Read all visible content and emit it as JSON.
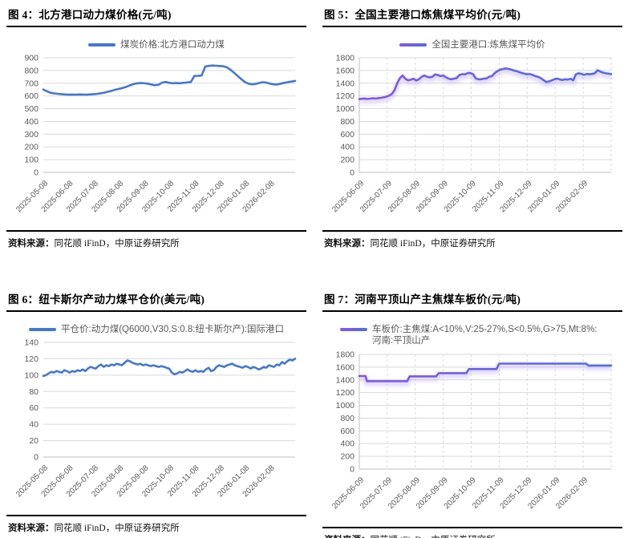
{
  "source_note": {
    "label": "资料来源：",
    "text": "同花顺 iFinD，中原证券研究所"
  },
  "colors": {
    "blue_line": "#4377d6",
    "purple_gradient_start": "#8356e8",
    "purple_gradient_end": "#4e6fe9",
    "purple_glow": "#c7b5f6",
    "gridline": "#d9d9d9",
    "axis": "#bfbfbf",
    "tick_text": "#595959"
  },
  "chart_data": [
    {
      "type": "line",
      "figure_label": "图 4",
      "title": "图 4：北方港口动力煤价格(元/吨)",
      "legend": "煤炭价格:北方港口动力煤",
      "ylim": [
        0,
        900
      ],
      "ytick_step": 100,
      "grid": "horizontal",
      "legend_position": "top-center",
      "palette": "blue",
      "x_labels": [
        "2025-05-08",
        "2025-06-08",
        "2025-07-08",
        "2025-08-08",
        "2025-09-08",
        "2025-10-08",
        "2025-11-08",
        "2025-12-08",
        "2026-01-08",
        "2026-02-08"
      ],
      "values": [
        650,
        637,
        625,
        620,
        617,
        614,
        612,
        610,
        611,
        610,
        612,
        611,
        610,
        612,
        614,
        617,
        621,
        626,
        633,
        641,
        649,
        655,
        662,
        671,
        682,
        692,
        699,
        701,
        700,
        697,
        690,
        684,
        688,
        704,
        710,
        703,
        700,
        701,
        700,
        703,
        706,
        709,
        757,
        758,
        760,
        831,
        836,
        839,
        837,
        835,
        833,
        825,
        806,
        783,
        757,
        733,
        710,
        697,
        691,
        695,
        702,
        708,
        704,
        697,
        691,
        690,
        697,
        703,
        708,
        713,
        718
      ]
    },
    {
      "type": "line",
      "figure_label": "图 5",
      "title": "图 5：全国主要港口炼焦煤平均价(元/吨)",
      "legend": "全国主要港口:炼焦煤平均价",
      "ylim": [
        0,
        1800
      ],
      "ytick_step": 200,
      "grid": "horizontal+vertical-dashed",
      "legend_position": "top-center",
      "palette": "purple-glow",
      "x_labels": [
        "2025-06-09",
        "2025-07-09",
        "2025-08-09",
        "2025-09-09",
        "2025-10-09",
        "2025-11-09",
        "2025-12-09",
        "2026-01-09",
        "2026-02-09"
      ],
      "values": [
        1150,
        1155,
        1160,
        1152,
        1158,
        1163,
        1158,
        1165,
        1170,
        1178,
        1190,
        1205,
        1230,
        1290,
        1400,
        1480,
        1520,
        1470,
        1445,
        1455,
        1470,
        1442,
        1462,
        1500,
        1520,
        1502,
        1492,
        1502,
        1538,
        1528,
        1512,
        1520,
        1492,
        1472,
        1462,
        1472,
        1482,
        1530,
        1542,
        1540,
        1558,
        1560,
        1542,
        1475,
        1462,
        1463,
        1472,
        1475,
        1502,
        1512,
        1558,
        1590,
        1612,
        1622,
        1632,
        1625,
        1615,
        1600,
        1590,
        1575,
        1560,
        1550,
        1540,
        1545,
        1530,
        1510,
        1500,
        1480,
        1450,
        1420,
        1428,
        1442,
        1462,
        1472,
        1460,
        1450,
        1462,
        1456,
        1470,
        1446,
        1540,
        1556,
        1546,
        1532,
        1546,
        1540,
        1546,
        1556,
        1605,
        1582,
        1566,
        1556,
        1550,
        1542
      ]
    },
    {
      "type": "line",
      "figure_label": "图 6",
      "title": "图 6：纽卡斯尔产动力煤平仓价(美元/吨)",
      "legend": "平仓价:动力煤(Q6000,V30,S:0.8:纽卡斯尔产):国际港口",
      "ylim": [
        0,
        140
      ],
      "ytick_step": 20,
      "grid": "horizontal",
      "legend_position": "top-center",
      "palette": "blue",
      "x_labels": [
        "2025-05-08",
        "2025-06-08",
        "2025-07-08",
        "2025-08-08",
        "2025-09-08",
        "2025-10-08",
        "2025-11-08",
        "2025-12-08",
        "2026-01-08",
        "2026-02-08"
      ],
      "values": [
        99,
        100,
        102,
        104,
        103,
        105,
        104,
        103,
        106,
        105,
        103,
        105,
        104,
        106,
        105,
        107,
        105,
        108,
        110,
        109,
        108,
        111,
        113,
        110,
        112,
        111,
        113,
        112,
        114,
        113,
        112,
        115,
        118,
        117,
        115,
        114,
        113,
        114,
        112,
        113,
        112,
        111,
        112,
        111,
        110,
        111,
        110,
        109,
        108,
        103,
        101,
        102,
        104,
        103,
        105,
        107,
        105,
        104,
        106,
        104,
        105,
        104,
        107,
        109,
        105,
        106,
        110,
        112,
        111,
        110,
        112,
        113,
        114,
        112,
        111,
        110,
        109,
        111,
        110,
        108,
        110,
        109,
        107,
        108,
        110,
        109,
        112,
        111,
        110,
        113,
        112,
        116,
        114,
        117,
        119,
        118,
        120
      ]
    },
    {
      "type": "line",
      "figure_label": "图 7",
      "title": "图 7：河南平顶山产主焦煤车板价(元/吨)",
      "legend": "车板价:主焦煤:A<10%,V:25-27%,S<0.5%,G>75,Mt:8%:河南:平顶山产",
      "ylim": [
        0,
        1800
      ],
      "ytick_step": 200,
      "grid": "horizontal+vertical-dashed",
      "legend_position": "top-left",
      "palette": "purple-glow",
      "x_labels": [
        "2025-06-09",
        "2025-07-09",
        "2025-08-09",
        "2025-09-09",
        "2025-10-09",
        "2025-11-09",
        "2025-12-09",
        "2026-01-09",
        "2026-02-09"
      ],
      "points": [
        [
          0,
          1460
        ],
        [
          0.025,
          1460
        ],
        [
          0.03,
          1380
        ],
        [
          0.19,
          1380
        ],
        [
          0.2,
          1455
        ],
        [
          0.305,
          1455
        ],
        [
          0.315,
          1505
        ],
        [
          0.425,
          1505
        ],
        [
          0.435,
          1570
        ],
        [
          0.545,
          1570
        ],
        [
          0.555,
          1655
        ],
        [
          0.9,
          1655
        ],
        [
          0.91,
          1625
        ],
        [
          1,
          1625
        ]
      ]
    }
  ]
}
